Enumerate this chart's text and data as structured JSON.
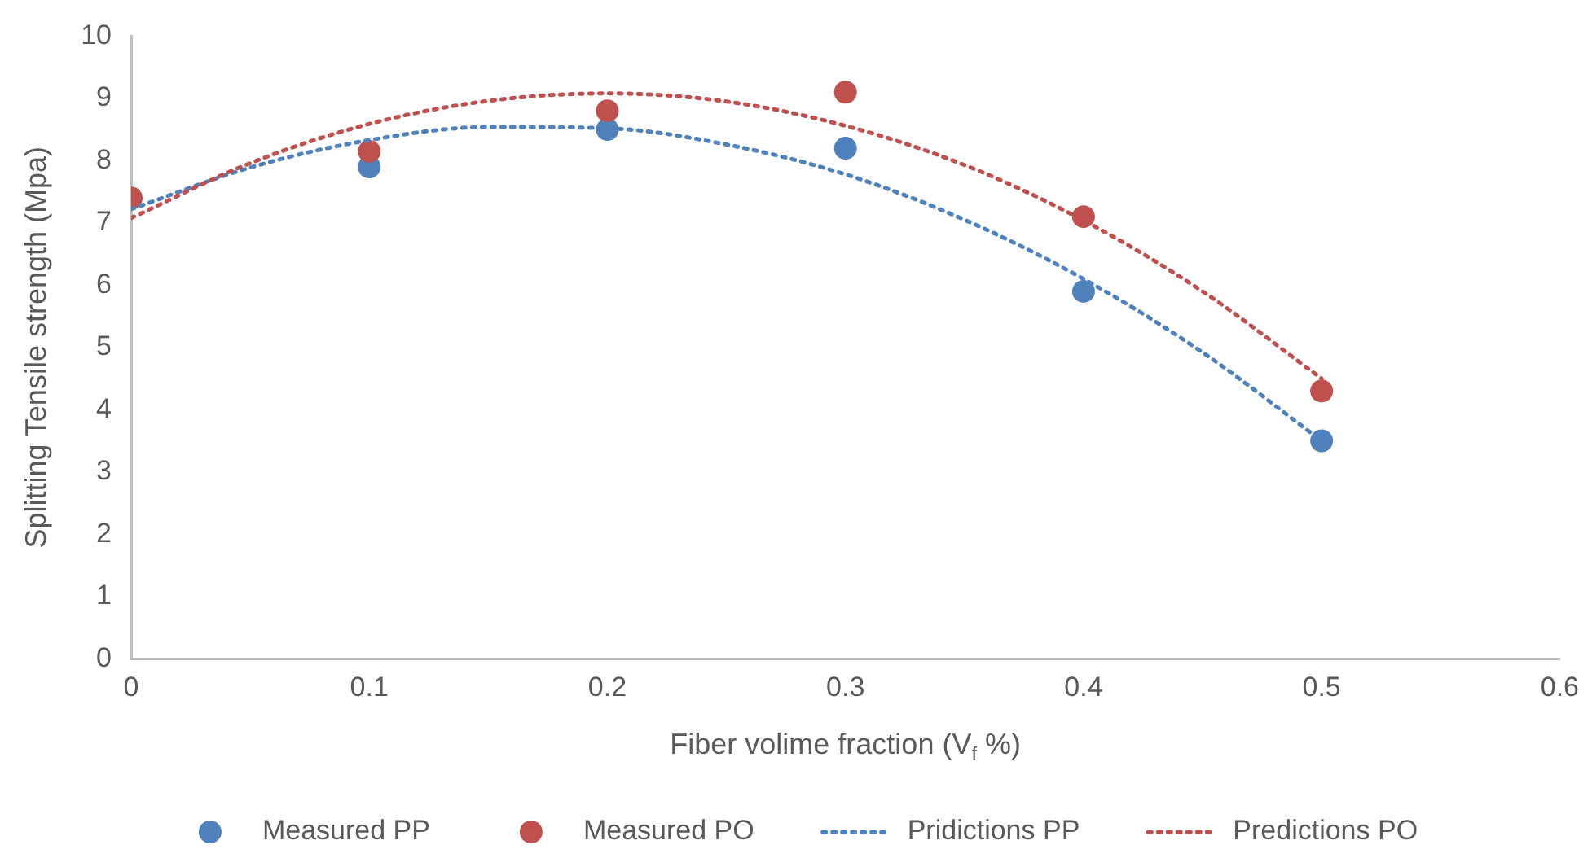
{
  "chart_data": {
    "type": "scatter",
    "xlabel": "Fiber volime fraction (V$_{f}$ %)",
    "ylabel": "Splitting Tensile strength (Mpa)",
    "xlim": [
      0,
      0.6
    ],
    "xticks": [
      0,
      0.1,
      0.2,
      0.3,
      0.4,
      0.5,
      0.6
    ],
    "ylim": [
      0,
      10
    ],
    "yticks": [
      0,
      1,
      2,
      3,
      4,
      5,
      6,
      7,
      8,
      9,
      10
    ],
    "grid": false,
    "legend": "bottom",
    "series": [
      {
        "name": "Measured PP",
        "type": "scatter",
        "marker": "circle",
        "color": "#4f81bd",
        "x": [
          0.1,
          0.2,
          0.3,
          0.4,
          0.5
        ],
        "values": [
          7.9,
          8.5,
          8.2,
          5.9,
          3.5
        ]
      },
      {
        "name": "Measured PO",
        "type": "scatter",
        "marker": "circle",
        "color": "#c0504d",
        "x": [
          0,
          0.1,
          0.2,
          0.3,
          0.4,
          0.5
        ],
        "values": [
          7.4,
          8.15,
          8.8,
          9.1,
          7.1,
          4.3
        ]
      },
      {
        "name": "Pridictions PP",
        "type": "line",
        "marker": "none",
        "line_style": "dotted",
        "color": "#4f81bd",
        "x": [
          0,
          0.05,
          0.1,
          0.15,
          0.2,
          0.25,
          0.3,
          0.35,
          0.4,
          0.45,
          0.5
        ],
        "values": [
          7.22,
          7.89,
          8.33,
          8.54,
          8.52,
          8.26,
          7.78,
          7.05,
          6.1,
          4.92,
          3.5
        ]
      },
      {
        "name": "Predictions PO",
        "type": "line",
        "marker": "none",
        "line_style": "dotted",
        "color": "#c0504d",
        "x": [
          0,
          0.05,
          0.1,
          0.15,
          0.2,
          0.25,
          0.3,
          0.35,
          0.4,
          0.45,
          0.5
        ],
        "values": [
          7.08,
          7.96,
          8.59,
          8.96,
          9.08,
          8.95,
          8.56,
          7.93,
          7.04,
          5.9,
          4.5
        ]
      }
    ]
  }
}
